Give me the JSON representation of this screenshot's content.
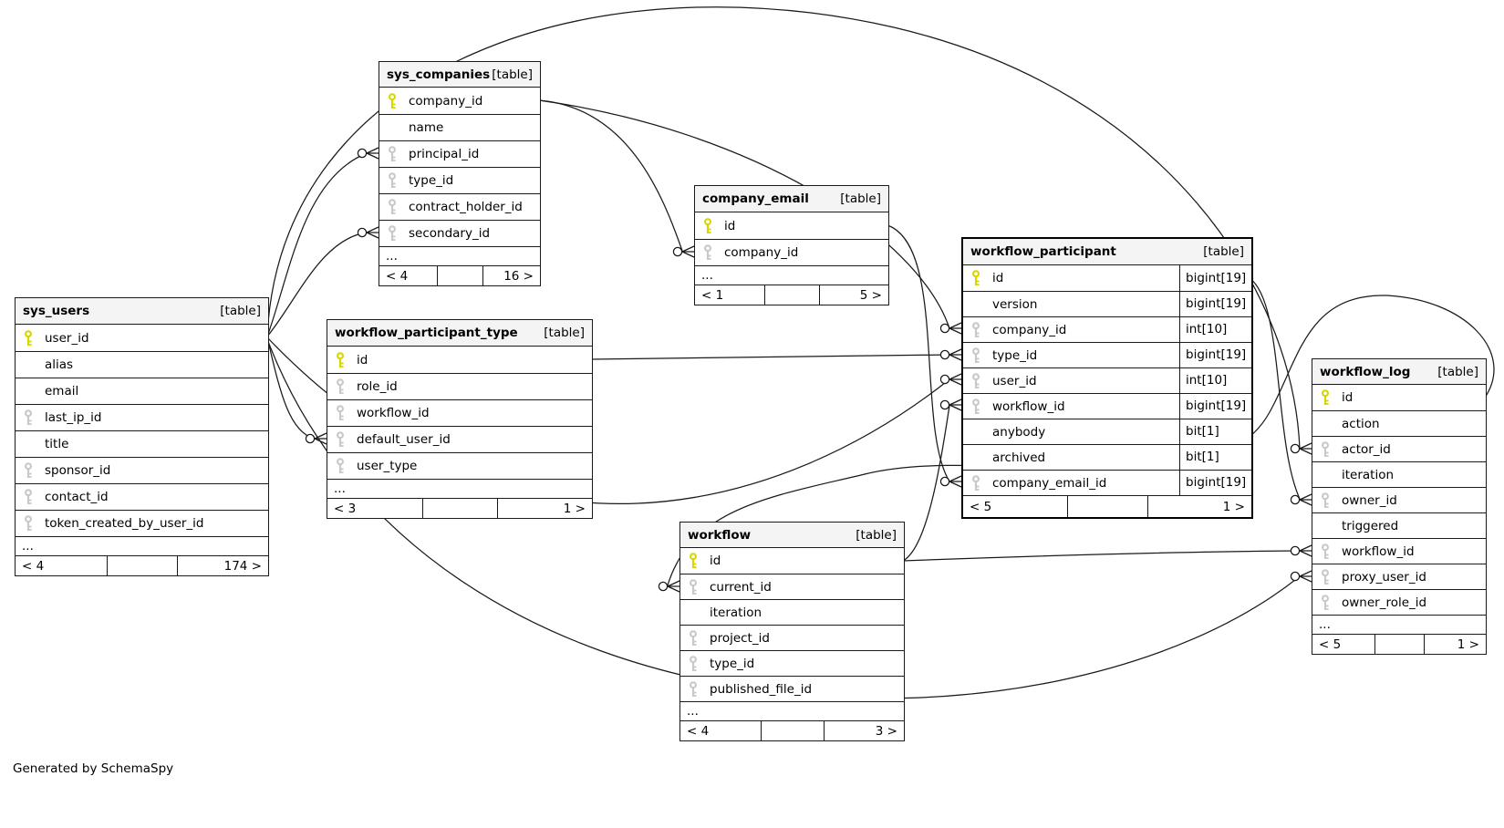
{
  "note": "Generated by SchemaSpy",
  "colors": {
    "pk_key": "#d6d600",
    "fk_key": "#c9c9c9",
    "header_bg": "#f4f4f4",
    "line": "#1a1a1a",
    "table_bg": "#ffffff"
  },
  "tables": [
    {
      "name": "sys_users",
      "tag": "[table]",
      "emphasis": false,
      "ellipsis": "...",
      "footer_left": "< 4",
      "footer_right": "174 >",
      "columns": [
        {
          "name": "user_id",
          "key": "pk"
        },
        {
          "name": "alias",
          "key": null
        },
        {
          "name": "email",
          "key": null
        },
        {
          "name": "last_ip_id",
          "key": "fk"
        },
        {
          "name": "title",
          "key": null
        },
        {
          "name": "sponsor_id",
          "key": "fk"
        },
        {
          "name": "contact_id",
          "key": "fk"
        },
        {
          "name": "token_created_by_user_id",
          "key": "fk"
        }
      ]
    },
    {
      "name": "sys_companies",
      "tag": "[table]",
      "emphasis": false,
      "ellipsis": "...",
      "footer_left": "< 4",
      "footer_right": "16 >",
      "columns": [
        {
          "name": "company_id",
          "key": "pk"
        },
        {
          "name": "name",
          "key": null
        },
        {
          "name": "principal_id",
          "key": "fk"
        },
        {
          "name": "type_id",
          "key": "fk"
        },
        {
          "name": "contract_holder_id",
          "key": "fk"
        },
        {
          "name": "secondary_id",
          "key": "fk"
        }
      ]
    },
    {
      "name": "workflow_participant_type",
      "tag": "[table]",
      "emphasis": false,
      "ellipsis": "...",
      "footer_left": "< 3",
      "footer_right": "1 >",
      "columns": [
        {
          "name": "id",
          "key": "pk"
        },
        {
          "name": "role_id",
          "key": "fk"
        },
        {
          "name": "workflow_id",
          "key": "fk"
        },
        {
          "name": "default_user_id",
          "key": "fk"
        },
        {
          "name": "user_type",
          "key": "fk"
        }
      ]
    },
    {
      "name": "company_email",
      "tag": "[table]",
      "emphasis": false,
      "ellipsis": "...",
      "footer_left": "< 1",
      "footer_right": "5 >",
      "columns": [
        {
          "name": "id",
          "key": "pk"
        },
        {
          "name": "company_id",
          "key": "fk"
        }
      ]
    },
    {
      "name": "workflow_participant",
      "tag": "[table]",
      "emphasis": true,
      "ellipsis": null,
      "footer_left": "< 5",
      "footer_right": "1 >",
      "columns": [
        {
          "name": "id",
          "key": "pk",
          "type": "bigint[19]"
        },
        {
          "name": "version",
          "key": null,
          "type": "bigint[19]"
        },
        {
          "name": "company_id",
          "key": "fk",
          "type": "int[10]"
        },
        {
          "name": "type_id",
          "key": "fk",
          "type": "bigint[19]"
        },
        {
          "name": "user_id",
          "key": "fk",
          "type": "int[10]"
        },
        {
          "name": "workflow_id",
          "key": "fk",
          "type": "bigint[19]"
        },
        {
          "name": "anybody",
          "key": null,
          "type": "bit[1]"
        },
        {
          "name": "archived",
          "key": null,
          "type": "bit[1]"
        },
        {
          "name": "company_email_id",
          "key": "fk",
          "type": "bigint[19]"
        }
      ]
    },
    {
      "name": "workflow",
      "tag": "[table]",
      "emphasis": false,
      "ellipsis": "...",
      "footer_left": "< 4",
      "footer_right": "3 >",
      "columns": [
        {
          "name": "id",
          "key": "pk"
        },
        {
          "name": "current_id",
          "key": "fk"
        },
        {
          "name": "iteration",
          "key": null
        },
        {
          "name": "project_id",
          "key": "fk"
        },
        {
          "name": "type_id",
          "key": "fk"
        },
        {
          "name": "published_file_id",
          "key": "fk"
        }
      ]
    },
    {
      "name": "workflow_log",
      "tag": "[table]",
      "emphasis": false,
      "ellipsis": "...",
      "footer_left": "< 5",
      "footer_right": "1 >",
      "columns": [
        {
          "name": "id",
          "key": "pk"
        },
        {
          "name": "action",
          "key": null
        },
        {
          "name": "actor_id",
          "key": "fk"
        },
        {
          "name": "iteration",
          "key": null
        },
        {
          "name": "owner_id",
          "key": "fk"
        },
        {
          "name": "triggered",
          "key": null
        },
        {
          "name": "workflow_id",
          "key": "fk"
        },
        {
          "name": "proxy_user_id",
          "key": "fk"
        },
        {
          "name": "owner_role_id",
          "key": "fk"
        }
      ]
    }
  ],
  "relationships": [
    {
      "pk": "sys_users.user_id",
      "fk": "sys_companies.principal_id"
    },
    {
      "pk": "sys_users.user_id",
      "fk": "sys_companies.secondary_id"
    },
    {
      "pk": "sys_users.user_id",
      "fk": "workflow_participant_type.default_user_id"
    },
    {
      "pk": "sys_users.user_id",
      "fk": "workflow_participant.user_id"
    },
    {
      "pk": "sys_users.user_id",
      "fk": "workflow_log.actor_id"
    },
    {
      "pk": "sys_users.user_id",
      "fk": "workflow_log.proxy_user_id"
    },
    {
      "pk": "sys_companies.company_id",
      "fk": "company_email.company_id"
    },
    {
      "pk": "sys_companies.company_id",
      "fk": "workflow_participant.company_id"
    },
    {
      "pk": "company_email.id",
      "fk": "workflow_participant.company_email_id"
    },
    {
      "pk": "workflow_participant_type.id",
      "fk": "workflow_participant.type_id"
    },
    {
      "pk": "workflow.id",
      "fk": "workflow_participant.workflow_id"
    },
    {
      "pk": "workflow.id",
      "fk": "workflow_log.workflow_id"
    },
    {
      "pk": "workflow_participant.id",
      "fk": "workflow_log.owner_id"
    },
    {
      "pk": "workflow_log.id",
      "fk": "workflow.current_id"
    }
  ]
}
